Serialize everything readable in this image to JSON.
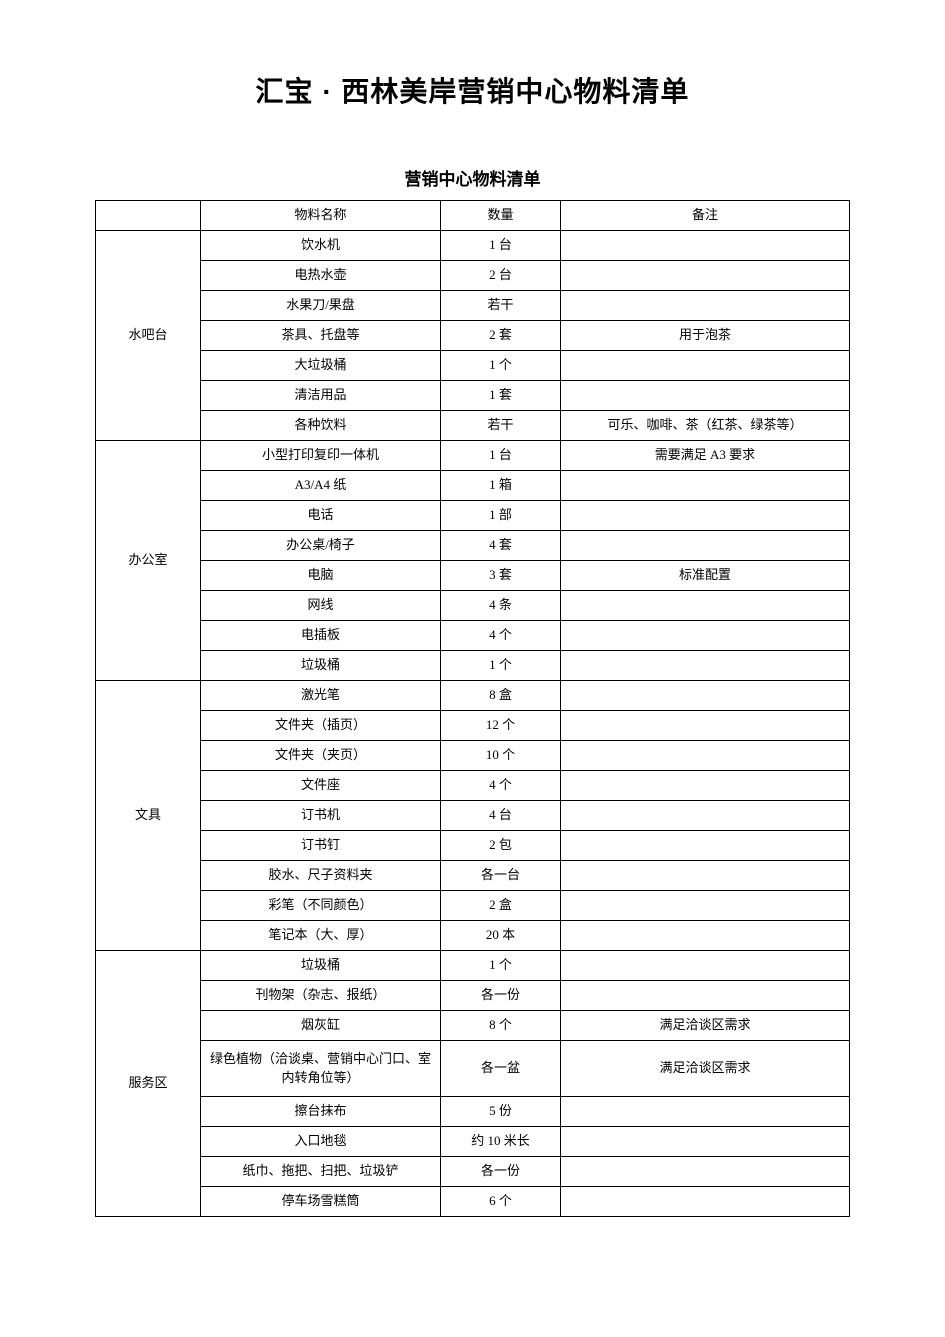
{
  "main_title": "汇宝 · 西林美岸营销中心物料清单",
  "sub_title": "营销中心物料清单",
  "header": {
    "area": "",
    "name": "物料名称",
    "qty": "数量",
    "note": "备注"
  },
  "sections": [
    {
      "area": "水吧台",
      "rows": [
        {
          "name": "饮水机",
          "qty": "1 台",
          "note": ""
        },
        {
          "name": "电热水壶",
          "qty": "2 台",
          "note": ""
        },
        {
          "name": "水果刀/果盘",
          "qty": "若干",
          "note": ""
        },
        {
          "name": "茶具、托盘等",
          "qty": "2 套",
          "note": "用于泡茶"
        },
        {
          "name": "大垃圾桶",
          "qty": "1 个",
          "note": ""
        },
        {
          "name": "清洁用品",
          "qty": "1 套",
          "note": ""
        },
        {
          "name": "各种饮料",
          "qty": "若干",
          "note": "可乐、咖啡、茶（红茶、绿茶等）"
        }
      ]
    },
    {
      "area": "办公室",
      "rows": [
        {
          "name": "小型打印复印一体机",
          "qty": "1 台",
          "note": "需要满足 A3 要求"
        },
        {
          "name": "A3/A4 纸",
          "qty": "1 箱",
          "note": ""
        },
        {
          "name": "电话",
          "qty": "1 部",
          "note": ""
        },
        {
          "name": "办公桌/椅子",
          "qty": "4 套",
          "note": ""
        },
        {
          "name": "电脑",
          "qty": "3 套",
          "note": "标准配置"
        },
        {
          "name": "网线",
          "qty": "4 条",
          "note": ""
        },
        {
          "name": "电插板",
          "qty": "4 个",
          "note": ""
        },
        {
          "name": "垃圾桶",
          "qty": "1 个",
          "note": ""
        }
      ]
    },
    {
      "area": "文具",
      "rows": [
        {
          "name": "激光笔",
          "qty": "8 盒",
          "note": ""
        },
        {
          "name": "文件夹（插页）",
          "qty": "12 个",
          "note": ""
        },
        {
          "name": "文件夹（夹页）",
          "qty": "10 个",
          "note": ""
        },
        {
          "name": "文件座",
          "qty": "4 个",
          "note": ""
        },
        {
          "name": "订书机",
          "qty": "4 台",
          "note": ""
        },
        {
          "name": "订书钉",
          "qty": "2 包",
          "note": ""
        },
        {
          "name": "胶水、尺子资料夹",
          "qty": "各一台",
          "note": ""
        },
        {
          "name": "彩笔（不同颜色）",
          "qty": "2 盒",
          "note": ""
        },
        {
          "name": "笔记本（大、厚）",
          "qty": "20 本",
          "note": ""
        }
      ]
    },
    {
      "area": "服务区",
      "rows": [
        {
          "name": "垃圾桶",
          "qty": "1 个",
          "note": ""
        },
        {
          "name": "刊物架（杂志、报纸）",
          "qty": "各一份",
          "note": ""
        },
        {
          "name": "烟灰缸",
          "qty": "8 个",
          "note": "满足洽谈区需求"
        },
        {
          "name": "绿色植物（洽谈桌、营销中心门口、室内转角位等）",
          "qty": "各一盆",
          "note": "满足洽谈区需求",
          "tall": true
        },
        {
          "name": "擦台抹布",
          "qty": "5 份",
          "note": ""
        },
        {
          "name": "入口地毯",
          "qty": "约 10 米长",
          "note": ""
        },
        {
          "name": "纸巾、拖把、扫把、垃圾铲",
          "qty": "各一份",
          "note": ""
        },
        {
          "name": "停车场雪糕筒",
          "qty": "6 个",
          "note": ""
        }
      ]
    }
  ]
}
